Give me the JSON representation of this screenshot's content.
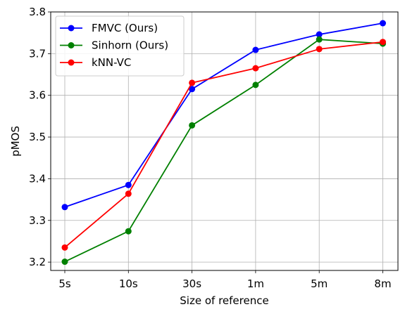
{
  "chart_data": {
    "type": "line",
    "categories": [
      "5s",
      "10s",
      "30s",
      "1m",
      "5m",
      "8m"
    ],
    "series": [
      {
        "name": "FMVC (Ours)",
        "color": "#0000ff",
        "values": [
          3.332,
          3.385,
          3.615,
          3.709,
          3.746,
          3.773
        ]
      },
      {
        "name": "Sinhorn (Ours)",
        "color": "#008000",
        "values": [
          3.201,
          3.274,
          3.528,
          3.625,
          3.734,
          3.724
        ]
      },
      {
        "name": "kNN-VC",
        "color": "#ff0000",
        "values": [
          3.235,
          3.364,
          3.63,
          3.665,
          3.711,
          3.728
        ]
      }
    ],
    "xlabel": "Size of reference",
    "ylabel": "pMOS",
    "ylim": [
      3.18,
      3.8
    ],
    "yticks": [
      "3.2",
      "3.3",
      "3.4",
      "3.5",
      "3.6",
      "3.7",
      "3.8"
    ],
    "grid": true,
    "legend_position": "top-left"
  }
}
